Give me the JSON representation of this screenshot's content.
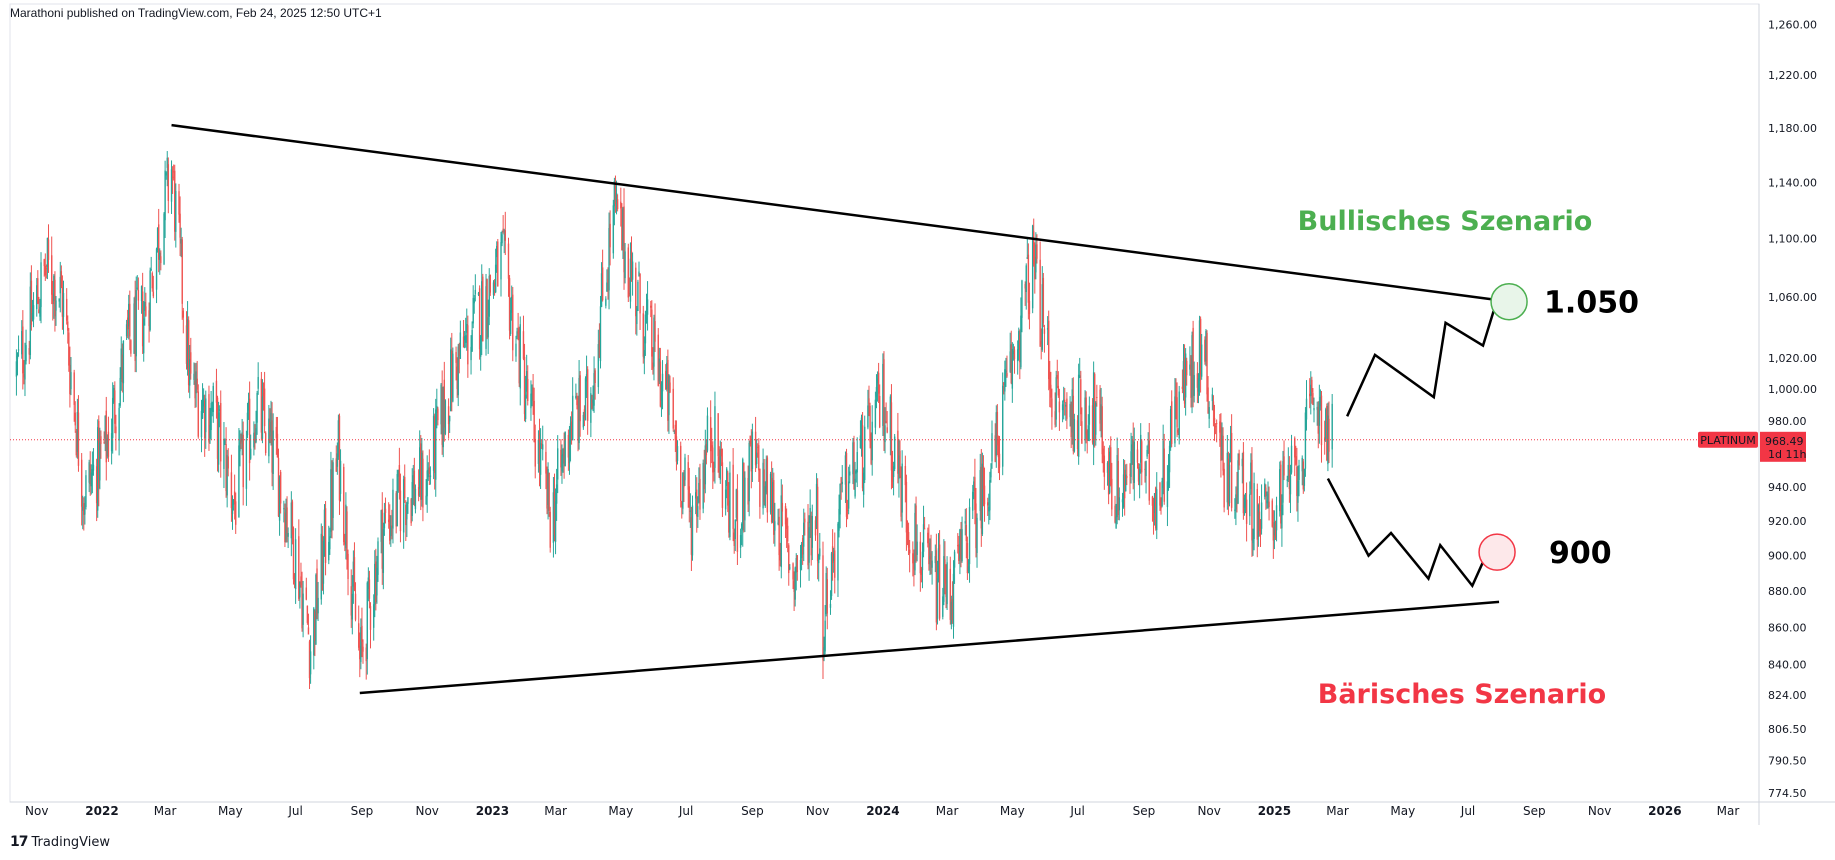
{
  "header": {
    "publisher": "Marathoni published on TradingView.com, Feb 24, 2025 12:50 UTC+1"
  },
  "footer": {
    "brand": "TradingView"
  },
  "colors": {
    "up": "#26a69a",
    "down": "#ef5350",
    "line": "#000000",
    "bull": "#4caf50",
    "bear": "#f23645",
    "axis": "#131722"
  },
  "chart_data": {
    "type": "candlestick",
    "symbol": "PLATINUM",
    "last_price": "968.49",
    "countdown": "1d 11h",
    "y_scale": "log",
    "ylim": [
      770,
      1265
    ],
    "y_ticks": [
      "1,260.00",
      "1,220.00",
      "1,180.00",
      "1,140.00",
      "1,100.00",
      "1,060.00",
      "1,020.00",
      "1,000.00",
      "980.00",
      "940.00",
      "920.00",
      "900.00",
      "880.00",
      "860.00",
      "840.00",
      "824.00",
      "806.50",
      "790.50",
      "774.50"
    ],
    "x_labels": [
      {
        "label": "Nov",
        "bold": false
      },
      {
        "label": "2022",
        "bold": true
      },
      {
        "label": "Mar",
        "bold": false
      },
      {
        "label": "May",
        "bold": false
      },
      {
        "label": "Jul",
        "bold": false
      },
      {
        "label": "Sep",
        "bold": false
      },
      {
        "label": "Nov",
        "bold": false
      },
      {
        "label": "2023",
        "bold": true
      },
      {
        "label": "Mar",
        "bold": false
      },
      {
        "label": "May",
        "bold": false
      },
      {
        "label": "Jul",
        "bold": false
      },
      {
        "label": "Sep",
        "bold": false
      },
      {
        "label": "Nov",
        "bold": false
      },
      {
        "label": "2024",
        "bold": true
      },
      {
        "label": "Mar",
        "bold": false
      },
      {
        "label": "May",
        "bold": false
      },
      {
        "label": "Jul",
        "bold": false
      },
      {
        "label": "Sep",
        "bold": false
      },
      {
        "label": "Nov",
        "bold": false
      },
      {
        "label": "2025",
        "bold": true
      },
      {
        "label": "Mar",
        "bold": false
      },
      {
        "label": "May",
        "bold": false
      },
      {
        "label": "Jul",
        "bold": false
      },
      {
        "label": "Sep",
        "bold": false
      },
      {
        "label": "Nov",
        "bold": false
      },
      {
        "label": "2026",
        "bold": true
      },
      {
        "label": "Mar",
        "bold": false
      }
    ],
    "price_path": [
      [
        "2021-10-13",
        1010
      ],
      [
        "2021-11-10",
        1080
      ],
      [
        "2021-11-25",
        1060
      ],
      [
        "2021-12-15",
        935
      ],
      [
        "2022-01-05",
        965
      ],
      [
        "2022-01-25",
        1030
      ],
      [
        "2022-02-10",
        1050
      ],
      [
        "2022-03-07",
        1150
      ],
      [
        "2022-03-25",
        1000
      ],
      [
        "2022-04-15",
        985
      ],
      [
        "2022-05-05",
        930
      ],
      [
        "2022-05-25",
        990
      ],
      [
        "2022-06-10",
        960
      ],
      [
        "2022-06-30",
        905
      ],
      [
        "2022-07-15",
        850
      ],
      [
        "2022-08-10",
        960
      ],
      [
        "2022-08-30",
        840
      ],
      [
        "2022-09-20",
        915
      ],
      [
        "2022-10-10",
        935
      ],
      [
        "2022-11-01",
        945
      ],
      [
        "2022-11-25",
        1010
      ],
      [
        "2022-12-20",
        1050
      ],
      [
        "2023-01-10",
        1085
      ],
      [
        "2023-02-01",
        1000
      ],
      [
        "2023-02-25",
        920
      ],
      [
        "2023-03-15",
        980
      ],
      [
        "2023-04-01",
        990
      ],
      [
        "2023-04-25",
        1120
      ],
      [
        "2023-05-20",
        1050
      ],
      [
        "2023-06-15",
        990
      ],
      [
        "2023-07-05",
        920
      ],
      [
        "2023-07-25",
        975
      ],
      [
        "2023-08-15",
        915
      ],
      [
        "2023-09-01",
        955
      ],
      [
        "2023-09-20",
        930
      ],
      [
        "2023-10-10",
        890
      ],
      [
        "2023-10-31",
        930
      ],
      [
        "2023-11-05",
        860
      ],
      [
        "2023-11-25",
        935
      ],
      [
        "2023-12-20",
        970
      ],
      [
        "2024-01-01",
        995
      ],
      [
        "2024-01-25",
        920
      ],
      [
        "2024-02-15",
        885
      ],
      [
        "2024-03-05",
        880
      ],
      [
        "2024-03-25",
        920
      ],
      [
        "2024-04-15",
        960
      ],
      [
        "2024-05-20",
        1085
      ],
      [
        "2024-06-10",
        990
      ],
      [
        "2024-06-25",
        985
      ],
      [
        "2024-07-15",
        990
      ],
      [
        "2024-08-05",
        935
      ],
      [
        "2024-08-25",
        955
      ],
      [
        "2024-09-15",
        935
      ],
      [
        "2024-10-01",
        990
      ],
      [
        "2024-10-25",
        1030
      ],
      [
        "2024-11-15",
        950
      ],
      [
        "2024-12-01",
        945
      ],
      [
        "2024-12-20",
        920
      ],
      [
        "2025-01-10",
        935
      ],
      [
        "2025-01-25",
        955
      ],
      [
        "2025-02-10",
        995
      ],
      [
        "2025-02-24",
        968
      ]
    ],
    "lines": [
      {
        "name": "resistance",
        "from": [
          "2022-03-07",
          1182
        ],
        "to": [
          "2025-07-30",
          1058
        ]
      },
      {
        "name": "support",
        "from": [
          "2022-08-30",
          825
        ],
        "to": [
          "2025-07-30",
          874
        ]
      }
    ],
    "bull_path": [
      [
        "2025-03-10",
        983
      ],
      [
        "2025-04-05",
        1022
      ],
      [
        "2025-05-30",
        995
      ],
      [
        "2025-06-10",
        1043
      ],
      [
        "2025-07-15",
        1028
      ],
      [
        "2025-07-28",
        1058
      ]
    ],
    "bear_path": [
      [
        "2025-02-20",
        945
      ],
      [
        "2025-03-30",
        900
      ],
      [
        "2025-04-20",
        913
      ],
      [
        "2025-05-25",
        887
      ],
      [
        "2025-06-05",
        906
      ],
      [
        "2025-07-05",
        883
      ],
      [
        "2025-07-25",
        910
      ]
    ],
    "bull_target": {
      "text": "1.050",
      "date": "2025-07-30",
      "price": 1057
    },
    "bear_target": {
      "text": "900",
      "date": "2025-07-30",
      "price": 902
    },
    "bull_title": "Bullisches Szenario",
    "bear_title": "Bärisches Szenario"
  }
}
